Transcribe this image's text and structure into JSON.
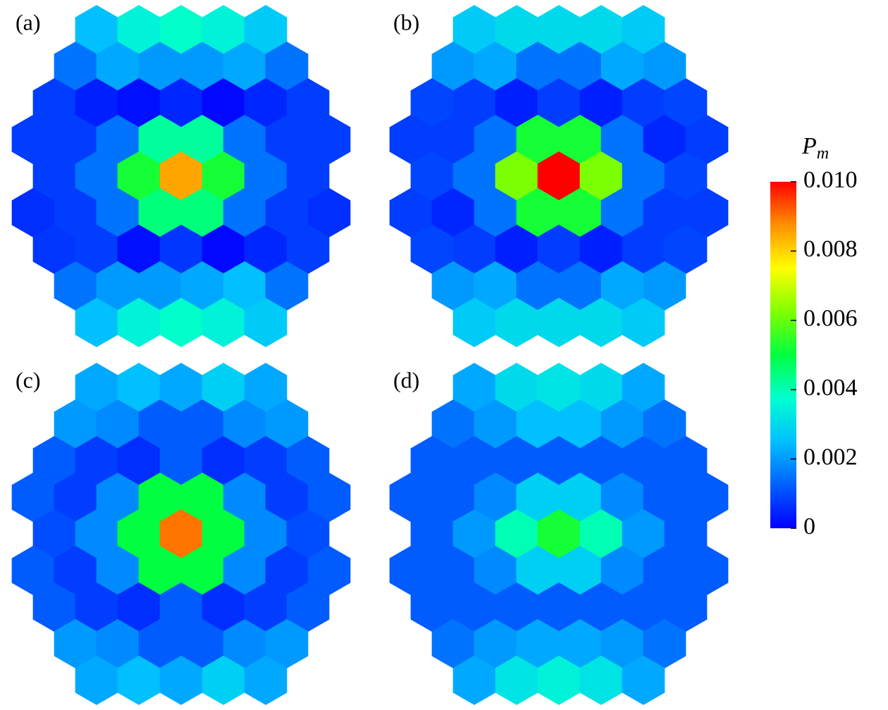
{
  "chart_data": [
    {
      "type": "hexmap",
      "label": "(a)",
      "rows": [
        [
          0.0025,
          0.0035,
          0.0038,
          0.0035,
          0.0027
        ],
        [
          0.0015,
          0.0022,
          0.002,
          0.002,
          0.0022,
          0.0015
        ],
        [
          0.0008,
          0.0004,
          0.0002,
          0.0005,
          0.0001,
          0.0005,
          0.0008
        ],
        [
          0.0008,
          0.0008,
          0.0015,
          0.0042,
          0.0042,
          0.0015,
          0.0008,
          0.0008
        ],
        [
          0.0008,
          0.0015,
          0.0052,
          0.0085,
          0.0052,
          0.0015,
          0.0008
        ],
        [
          0.0006,
          0.0008,
          0.0015,
          0.0045,
          0.0045,
          0.0015,
          0.0008,
          0.0006
        ],
        [
          0.0007,
          0.0008,
          0.0002,
          0.0007,
          0.0001,
          0.0005,
          0.0008
        ],
        [
          0.0015,
          0.002,
          0.002,
          0.0022,
          0.0025,
          0.0015
        ],
        [
          0.0025,
          0.0035,
          0.0038,
          0.0035,
          0.0027
        ]
      ]
    },
    {
      "type": "hexmap",
      "label": "(b)",
      "rows": [
        [
          0.0027,
          0.003,
          0.003,
          0.003,
          0.0027
        ],
        [
          0.002,
          0.0022,
          0.0015,
          0.0015,
          0.0022,
          0.002
        ],
        [
          0.0009,
          0.0008,
          0.0004,
          0.0008,
          0.0004,
          0.0008,
          0.0009
        ],
        [
          0.0008,
          0.0008,
          0.0015,
          0.0052,
          0.0052,
          0.0015,
          0.0005,
          0.0008
        ],
        [
          0.0009,
          0.0015,
          0.0062,
          0.01,
          0.0062,
          0.0015,
          0.0009
        ],
        [
          0.0008,
          0.0005,
          0.0015,
          0.0052,
          0.0052,
          0.0015,
          0.0008,
          0.0008
        ],
        [
          0.0009,
          0.0008,
          0.0004,
          0.0008,
          0.0004,
          0.0008,
          0.0009
        ],
        [
          0.002,
          0.0022,
          0.0015,
          0.0015,
          0.0022,
          0.002
        ],
        [
          0.0027,
          0.003,
          0.003,
          0.003,
          0.0027
        ]
      ]
    },
    {
      "type": "hexmap",
      "label": "(c)",
      "rows": [
        [
          0.0022,
          0.0025,
          0.0022,
          0.0028,
          0.0022
        ],
        [
          0.002,
          0.0018,
          0.0012,
          0.0012,
          0.0018,
          0.002
        ],
        [
          0.0012,
          0.0008,
          0.0006,
          0.0012,
          0.0006,
          0.0008,
          0.0012
        ],
        [
          0.0012,
          0.0008,
          0.0018,
          0.005,
          0.005,
          0.0018,
          0.0008,
          0.0012
        ],
        [
          0.001,
          0.0018,
          0.005,
          0.009,
          0.005,
          0.0018,
          0.001
        ],
        [
          0.0012,
          0.0008,
          0.0018,
          0.005,
          0.005,
          0.0018,
          0.0008,
          0.0012
        ],
        [
          0.0012,
          0.0008,
          0.0006,
          0.0012,
          0.0006,
          0.0008,
          0.0012
        ],
        [
          0.002,
          0.0018,
          0.0012,
          0.0012,
          0.0018,
          0.002
        ],
        [
          0.0022,
          0.0025,
          0.0022,
          0.0028,
          0.0022
        ]
      ]
    },
    {
      "type": "hexmap",
      "label": "(d)",
      "rows": [
        [
          0.0022,
          0.003,
          0.0032,
          0.003,
          0.0022
        ],
        [
          0.0015,
          0.002,
          0.0025,
          0.0025,
          0.002,
          0.0015
        ],
        [
          0.0012,
          0.0012,
          0.0012,
          0.0012,
          0.0012,
          0.0012,
          0.0012
        ],
        [
          0.0012,
          0.0012,
          0.0018,
          0.0028,
          0.0028,
          0.0018,
          0.0012,
          0.0012
        ],
        [
          0.0012,
          0.002,
          0.004,
          0.0052,
          0.004,
          0.002,
          0.0012
        ],
        [
          0.0012,
          0.0012,
          0.0018,
          0.0028,
          0.0028,
          0.0018,
          0.0012,
          0.0012
        ],
        [
          0.0012,
          0.0012,
          0.0012,
          0.0012,
          0.0012,
          0.0012,
          0.0012
        ],
        [
          0.0015,
          0.002,
          0.0022,
          0.0022,
          0.002,
          0.0015
        ],
        [
          0.0022,
          0.0032,
          0.0035,
          0.0032,
          0.0022
        ]
      ]
    }
  ],
  "colorbar": {
    "label": "P",
    "label_sub": "m",
    "lim": [
      0,
      0.01
    ],
    "ticks": [
      0,
      0.002,
      0.004,
      0.006,
      0.008,
      {
        "value": 0.01,
        "label": "0.010"
      }
    ],
    "colormap": [
      "#0000ff",
      "#0060ff",
      "#00c0ff",
      "#00ffd0",
      "#00ff40",
      "#80ff00",
      "#ffff00",
      "#ff9000",
      "#ff0000"
    ]
  }
}
